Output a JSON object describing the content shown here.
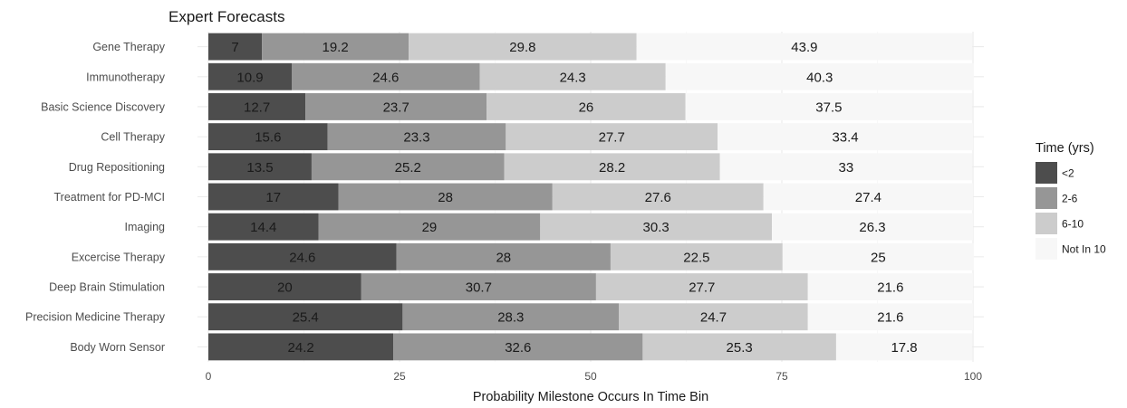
{
  "chart_data": {
    "type": "bar",
    "orientation": "horizontal",
    "stacked": true,
    "title": "Expert Forecasts",
    "xlabel": "Probability Milestone Occurs In Time Bin",
    "ylabel": "",
    "xlim": [
      0,
      100
    ],
    "xticks": [
      0,
      25,
      50,
      75,
      100
    ],
    "grid": true,
    "legend_title": "Time (yrs)",
    "legend_position": "right",
    "categories": [
      "Gene Therapy",
      "Immunotherapy",
      "Basic Science Discovery",
      "Cell Therapy",
      "Drug Repositioning",
      "Treatment for PD-MCI",
      "Imaging",
      "Excercise Therapy",
      "Deep Brain Stimulation",
      "Precision Medicine Therapy",
      "Body Worn Sensor"
    ],
    "series": [
      {
        "name": "<2",
        "color": "#4d4d4d",
        "values": [
          7,
          10.9,
          12.7,
          15.6,
          13.5,
          17,
          14.4,
          24.6,
          20,
          25.4,
          24.2
        ]
      },
      {
        "name": "2-6",
        "color": "#969696",
        "values": [
          19.2,
          24.6,
          23.7,
          23.3,
          25.2,
          28,
          29,
          28,
          30.7,
          28.3,
          32.6
        ]
      },
      {
        "name": "6-10",
        "color": "#cccccc",
        "values": [
          29.8,
          24.3,
          26,
          27.7,
          28.2,
          27.6,
          30.3,
          22.5,
          27.7,
          24.7,
          25.3
        ]
      },
      {
        "name": "Not In 10",
        "color": "#f7f7f7",
        "values": [
          43.9,
          40.3,
          37.5,
          33.4,
          33,
          27.4,
          26.3,
          25,
          21.6,
          21.6,
          17.8
        ]
      }
    ]
  }
}
